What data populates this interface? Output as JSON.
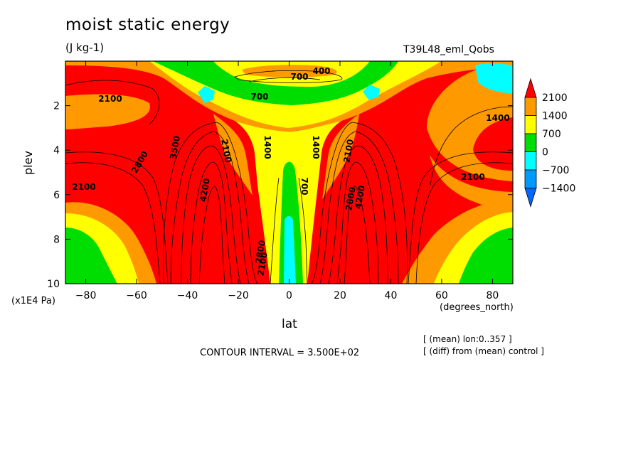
{
  "chart_data": {
    "type": "heatmap",
    "title": "moist static energy",
    "units": "(J kg-1)",
    "run_label": "T39L48_eml_Qobs",
    "xlabel": "lat",
    "x_units": "(degrees_north)",
    "ylabel": "plev",
    "y_units": "(x1E4 Pa)",
    "x_ticks": [
      "-80",
      "-60",
      "-40",
      "-20",
      "0",
      "20",
      "40",
      "60",
      "80"
    ],
    "y_ticks": [
      "2",
      "4",
      "6",
      "8",
      "10"
    ],
    "xlim": [
      -88,
      88
    ],
    "ylim": [
      0,
      10
    ],
    "y_inverted": true,
    "colorbar": {
      "levels": [
        "2100",
        "1400",
        "700",
        "0",
        "-700",
        "-1400"
      ],
      "colors": [
        "#ff0000",
        "#ff9900",
        "#ffff00",
        "#00dd00",
        "#00ffff",
        "#0099ff"
      ],
      "top_color": "#ff0000",
      "bottom_color": "#0066ff"
    },
    "contour_labels": [
      "700",
      "400",
      "700",
      "2100",
      "1400",
      "2100",
      "3500",
      "2800",
      "2100",
      "4200",
      "1400",
      "1400",
      "700",
      "2100",
      "2100",
      "2800",
      "4200",
      "2100",
      "2800"
    ],
    "contour_interval": "CONTOUR INTERVAL = 3.500E+02",
    "notes": [
      "[ (mean) lon:0..357 ]",
      "[ (diff) from (mean) control ]"
    ]
  }
}
